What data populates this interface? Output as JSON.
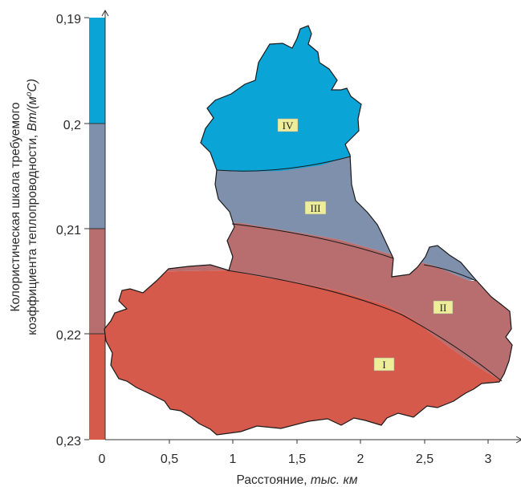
{
  "colorbar": {
    "ticks": [
      "0,19",
      "0,2",
      "0,21",
      "0,22",
      "0,23"
    ],
    "segments": [
      {
        "color": "#0aa5d6"
      },
      {
        "color": "#7f90ac"
      },
      {
        "color": "#b86e6e"
      },
      {
        "color": "#d65a4c"
      }
    ],
    "title_line1": "Колористическая шкала требуемого",
    "title_line2_prefix": "коэффициента теплопроводности, ",
    "title_unit": "Вт/(м",
    "title_unit_sup": "o",
    "title_unit_end": "С)"
  },
  "x_axis": {
    "ticks": [
      "0",
      "0,5",
      "1",
      "1,5",
      "2",
      "2,5",
      "3"
    ],
    "title_prefix": "Расстояние, ",
    "title_unit": "тыс. км"
  },
  "zones": [
    {
      "label": "IV",
      "color": "#0aa5d6"
    },
    {
      "label": "III",
      "color": "#7f90ac"
    },
    {
      "label": "II",
      "color": "#b86e6e"
    },
    {
      "label": "I",
      "color": "#d65a4c"
    }
  ],
  "label_bg": "#eeee9a"
}
